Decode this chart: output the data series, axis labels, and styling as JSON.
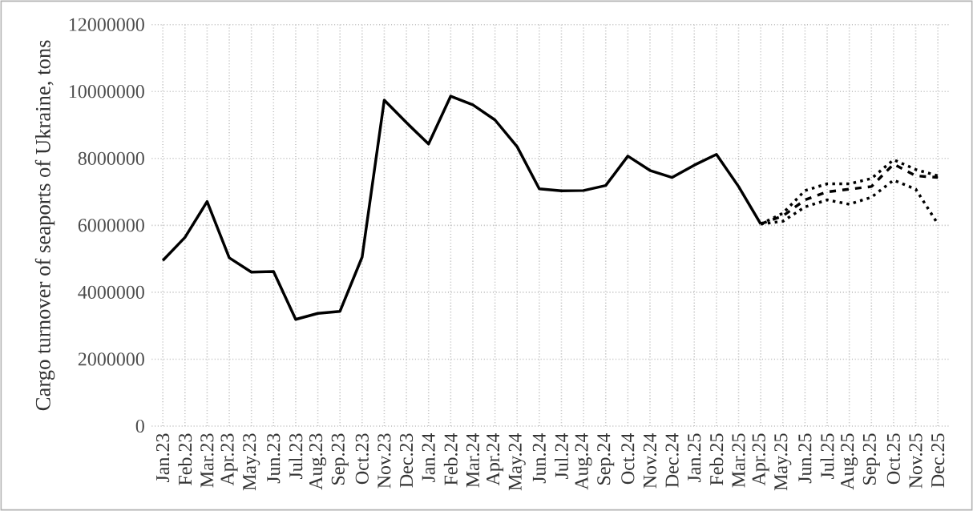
{
  "chart_data": {
    "type": "line",
    "ylabel": "Cargo turnover of seaports of Ukraine, tons",
    "categories": [
      "Jan.23",
      "Feb.23",
      "Mar.23",
      "Apr.23",
      "May.23",
      "Jun.23",
      "Jul.23",
      "Aug.23",
      "Sep.23",
      "Oct.23",
      "Nov.23",
      "Dec.23",
      "Jan.24",
      "Feb.24",
      "Mar.24",
      "Apr.24",
      "May.24",
      "Jun.24",
      "Jul.24",
      "Aug.24",
      "Sep.24",
      "Oct.24",
      "Nov.24",
      "Dec.24",
      "Jan.25",
      "Feb.25",
      "Mar.25",
      "Apr.25",
      "May.25",
      "Jun.25",
      "Jul.25",
      "Aug.25",
      "Sep.25",
      "Oct.25",
      "Nov.25",
      "Dec.25"
    ],
    "series": [
      {
        "color": "#000000",
        "line_style": "solid",
        "values": [
          4950000,
          5640000,
          6710000,
          5030000,
          4600000,
          4620000,
          3190000,
          3370000,
          3430000,
          5050000,
          9740000,
          9070000,
          8430000,
          9860000,
          9600000,
          9150000,
          8350000,
          7090000,
          7030000,
          7040000,
          7190000,
          8070000,
          7640000,
          7430000,
          7800000,
          8120000,
          7160000,
          6040000,
          null,
          null,
          null,
          null,
          null,
          null,
          null,
          null
        ]
      },
      {
        "color": "#000000",
        "line_style": "dashed",
        "values": [
          null,
          null,
          null,
          null,
          null,
          null,
          null,
          null,
          null,
          null,
          null,
          null,
          null,
          null,
          null,
          null,
          null,
          null,
          null,
          null,
          null,
          null,
          null,
          null,
          null,
          null,
          null,
          6040000,
          6280000,
          6760000,
          7000000,
          7080000,
          7160000,
          7830000,
          7480000,
          7430000
        ]
      },
      {
        "color": "#000000",
        "line_style": "dotted",
        "values": [
          null,
          null,
          null,
          null,
          null,
          null,
          null,
          null,
          null,
          null,
          null,
          null,
          null,
          null,
          null,
          null,
          null,
          null,
          null,
          null,
          null,
          null,
          null,
          null,
          null,
          null,
          null,
          6040000,
          6360000,
          7040000,
          7240000,
          7240000,
          7400000,
          7960000,
          7670000,
          7480000
        ]
      },
      {
        "color": "#000000",
        "line_style": "dotted",
        "values": [
          null,
          null,
          null,
          null,
          null,
          null,
          null,
          null,
          null,
          null,
          null,
          null,
          null,
          null,
          null,
          null,
          null,
          null,
          null,
          null,
          null,
          null,
          null,
          null,
          null,
          null,
          null,
          6040000,
          6120000,
          6550000,
          6760000,
          6630000,
          6840000,
          7350000,
          7080000,
          6040000
        ]
      }
    ],
    "ylim": [
      0,
      12000000
    ],
    "yticks": [
      0,
      2000000,
      4000000,
      6000000,
      8000000,
      10000000,
      12000000
    ],
    "grid": true,
    "marker": "none"
  }
}
